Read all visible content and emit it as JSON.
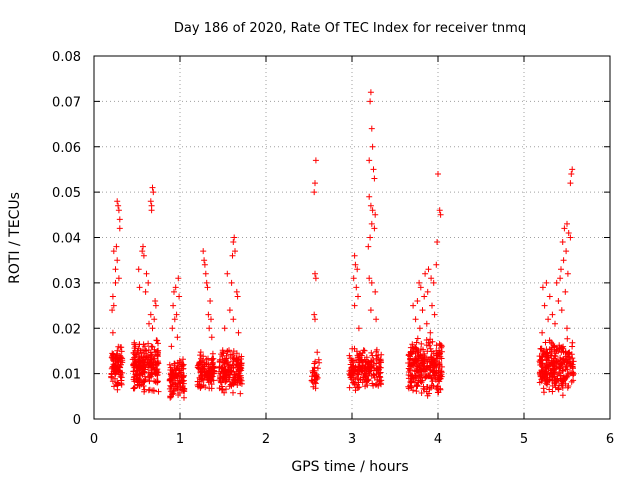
{
  "chart_data": {
    "type": "scatter",
    "title": "Day 186 of 2020, Rate Of TEC Index for receiver tnmq",
    "xlabel": "GPS time / hours",
    "ylabel": "ROTI / TECUs",
    "xlim": [
      0,
      6
    ],
    "ylim": [
      0,
      0.08
    ],
    "x_ticks": [
      0,
      1,
      2,
      3,
      4,
      5,
      6
    ],
    "x_tick_labels": [
      "0",
      "1",
      "2",
      "3",
      "4",
      "5",
      "6"
    ],
    "y_ticks": [
      0,
      0.01,
      0.02,
      0.03,
      0.04,
      0.05,
      0.06,
      0.07,
      0.08
    ],
    "y_tick_labels": [
      "0",
      "0.01",
      "0.02",
      "0.03",
      "0.04",
      "0.05",
      "0.06",
      "0.07",
      "0.08"
    ],
    "grid": true,
    "marker": "+",
    "color": "#ff0000",
    "clusters": [
      {
        "x_range": [
          0.2,
          0.33
        ],
        "base_range": [
          0.006,
          0.017
        ],
        "base_count": 90,
        "spikes": [
          [
            0.27,
            0.048
          ],
          [
            0.28,
            0.047
          ],
          [
            0.29,
            0.046
          ],
          [
            0.3,
            0.044
          ],
          [
            0.3,
            0.042
          ],
          [
            0.26,
            0.038
          ],
          [
            0.23,
            0.037
          ],
          [
            0.27,
            0.035
          ],
          [
            0.25,
            0.033
          ],
          [
            0.29,
            0.031
          ],
          [
            0.25,
            0.03
          ],
          [
            0.22,
            0.027
          ],
          [
            0.23,
            0.025
          ],
          [
            0.21,
            0.024
          ],
          [
            0.22,
            0.019
          ]
        ]
      },
      {
        "x_range": [
          0.45,
          0.75
        ],
        "base_range": [
          0.005,
          0.018
        ],
        "base_count": 220,
        "spikes": [
          [
            0.68,
            0.051
          ],
          [
            0.69,
            0.05
          ],
          [
            0.66,
            0.048
          ],
          [
            0.67,
            0.047
          ],
          [
            0.67,
            0.046
          ],
          [
            0.57,
            0.038
          ],
          [
            0.56,
            0.037
          ],
          [
            0.58,
            0.036
          ],
          [
            0.52,
            0.033
          ],
          [
            0.61,
            0.032
          ],
          [
            0.63,
            0.03
          ],
          [
            0.53,
            0.029
          ],
          [
            0.6,
            0.028
          ],
          [
            0.71,
            0.026
          ],
          [
            0.72,
            0.025
          ],
          [
            0.66,
            0.023
          ],
          [
            0.7,
            0.022
          ],
          [
            0.64,
            0.021
          ],
          [
            0.68,
            0.02
          ]
        ]
      },
      {
        "x_range": [
          0.88,
          1.05
        ],
        "base_range": [
          0.004,
          0.014
        ],
        "base_count": 110,
        "spikes": [
          [
            0.98,
            0.031
          ],
          [
            0.95,
            0.029
          ],
          [
            0.93,
            0.028
          ],
          [
            0.99,
            0.027
          ],
          [
            0.92,
            0.025
          ],
          [
            0.96,
            0.023
          ],
          [
            0.94,
            0.022
          ],
          [
            0.91,
            0.02
          ],
          [
            0.97,
            0.018
          ],
          [
            0.9,
            0.016
          ]
        ]
      },
      {
        "x_range": [
          1.2,
          1.4
        ],
        "base_range": [
          0.006,
          0.015
        ],
        "base_count": 130,
        "spikes": [
          [
            1.27,
            0.037
          ],
          [
            1.28,
            0.035
          ],
          [
            1.29,
            0.034
          ],
          [
            1.3,
            0.032
          ],
          [
            1.31,
            0.03
          ],
          [
            1.32,
            0.029
          ],
          [
            1.35,
            0.026
          ],
          [
            1.33,
            0.023
          ],
          [
            1.36,
            0.022
          ],
          [
            1.34,
            0.02
          ],
          [
            1.37,
            0.018
          ]
        ]
      },
      {
        "x_range": [
          1.45,
          1.72
        ],
        "base_range": [
          0.005,
          0.016
        ],
        "base_count": 170,
        "spikes": [
          [
            1.63,
            0.04
          ],
          [
            1.62,
            0.039
          ],
          [
            1.64,
            0.037
          ],
          [
            1.61,
            0.036
          ],
          [
            1.55,
            0.032
          ],
          [
            1.6,
            0.03
          ],
          [
            1.66,
            0.028
          ],
          [
            1.67,
            0.027
          ],
          [
            1.58,
            0.024
          ],
          [
            1.62,
            0.022
          ],
          [
            1.52,
            0.02
          ],
          [
            1.68,
            0.019
          ]
        ]
      },
      {
        "x_range": [
          2.53,
          2.62
        ],
        "base_range": [
          0.006,
          0.015
        ],
        "base_count": 30,
        "spikes": [
          [
            2.58,
            0.057
          ],
          [
            2.57,
            0.052
          ],
          [
            2.56,
            0.05
          ],
          [
            2.57,
            0.032
          ],
          [
            2.58,
            0.031
          ],
          [
            2.56,
            0.023
          ],
          [
            2.57,
            0.022
          ]
        ]
      },
      {
        "x_range": [
          2.97,
          3.34
        ],
        "base_range": [
          0.006,
          0.016
        ],
        "base_count": 200,
        "spikes": [
          [
            3.22,
            0.072
          ],
          [
            3.21,
            0.07
          ],
          [
            3.23,
            0.064
          ],
          [
            3.24,
            0.06
          ],
          [
            3.2,
            0.057
          ],
          [
            3.25,
            0.055
          ],
          [
            3.26,
            0.053
          ],
          [
            3.2,
            0.049
          ],
          [
            3.22,
            0.047
          ],
          [
            3.24,
            0.046
          ],
          [
            3.27,
            0.045
          ],
          [
            3.23,
            0.043
          ],
          [
            3.26,
            0.042
          ],
          [
            3.21,
            0.04
          ],
          [
            3.19,
            0.038
          ],
          [
            3.03,
            0.036
          ],
          [
            3.04,
            0.034
          ],
          [
            3.06,
            0.033
          ],
          [
            3.02,
            0.031
          ],
          [
            3.05,
            0.029
          ],
          [
            3.2,
            0.031
          ],
          [
            3.23,
            0.03
          ],
          [
            3.27,
            0.028
          ],
          [
            3.07,
            0.027
          ],
          [
            3.03,
            0.025
          ],
          [
            3.22,
            0.024
          ],
          [
            3.28,
            0.022
          ],
          [
            3.08,
            0.02
          ]
        ]
      },
      {
        "x_range": [
          3.65,
          4.05
        ],
        "base_range": [
          0.005,
          0.018
        ],
        "base_count": 280,
        "spikes": [
          [
            4.0,
            0.054
          ],
          [
            4.02,
            0.046
          ],
          [
            4.03,
            0.045
          ],
          [
            3.99,
            0.039
          ],
          [
            3.98,
            0.034
          ],
          [
            3.89,
            0.033
          ],
          [
            3.85,
            0.032
          ],
          [
            3.92,
            0.031
          ],
          [
            3.78,
            0.03
          ],
          [
            3.95,
            0.03
          ],
          [
            3.8,
            0.029
          ],
          [
            3.88,
            0.028
          ],
          [
            3.84,
            0.027
          ],
          [
            3.76,
            0.026
          ],
          [
            3.93,
            0.025
          ],
          [
            3.71,
            0.025
          ],
          [
            3.82,
            0.024
          ],
          [
            3.96,
            0.023
          ],
          [
            3.74,
            0.022
          ],
          [
            3.87,
            0.021
          ],
          [
            3.79,
            0.02
          ],
          [
            3.91,
            0.019
          ]
        ]
      },
      {
        "x_range": [
          5.18,
          5.58
        ],
        "base_range": [
          0.005,
          0.018
        ],
        "base_count": 260,
        "spikes": [
          [
            5.56,
            0.055
          ],
          [
            5.55,
            0.054
          ],
          [
            5.54,
            0.052
          ],
          [
            5.5,
            0.043
          ],
          [
            5.47,
            0.042
          ],
          [
            5.52,
            0.041
          ],
          [
            5.54,
            0.04
          ],
          [
            5.45,
            0.039
          ],
          [
            5.49,
            0.037
          ],
          [
            5.46,
            0.035
          ],
          [
            5.43,
            0.033
          ],
          [
            5.51,
            0.032
          ],
          [
            5.42,
            0.031
          ],
          [
            5.26,
            0.03
          ],
          [
            5.38,
            0.03
          ],
          [
            5.22,
            0.029
          ],
          [
            5.48,
            0.028
          ],
          [
            5.3,
            0.027
          ],
          [
            5.4,
            0.026
          ],
          [
            5.24,
            0.025
          ],
          [
            5.44,
            0.024
          ],
          [
            5.33,
            0.023
          ],
          [
            5.28,
            0.022
          ],
          [
            5.36,
            0.021
          ],
          [
            5.5,
            0.02
          ],
          [
            5.21,
            0.019
          ]
        ]
      }
    ]
  }
}
